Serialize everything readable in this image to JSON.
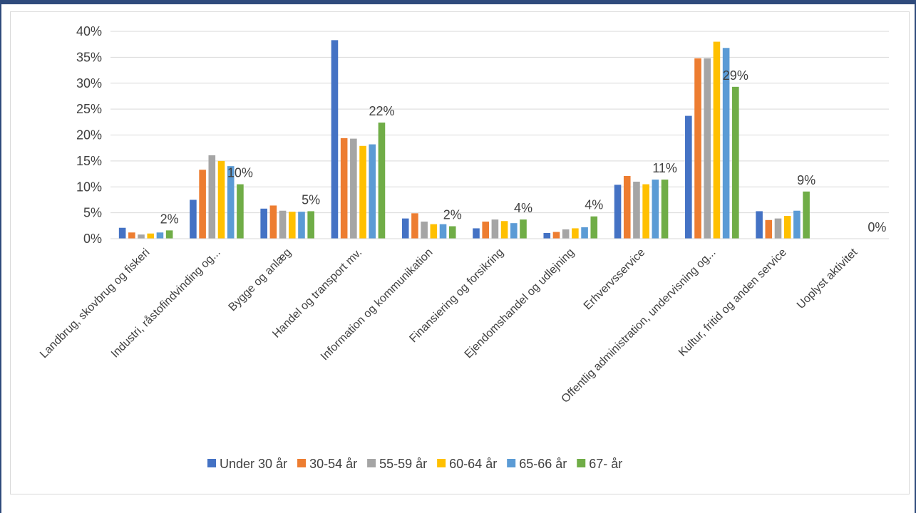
{
  "chart_data": {
    "type": "bar",
    "categories": [
      "Landbrug, skovbrug og fiskeri",
      "Industri, råstofindvinding og...",
      "Bygge og anlæg",
      "Handel og transport mv.",
      "Information og kommunikation",
      "Finansiering og forsikring",
      "Ejendomshandel og udlejning",
      "Erhvervsservice",
      "Offentlig administration, undervisning og...",
      "Kultur, fritid og anden service",
      "Uoplyst aktivitet"
    ],
    "series": [
      {
        "name": "Under 30 år",
        "color": "#4472c4",
        "values": [
          2.1,
          7.5,
          5.8,
          38.3,
          3.9,
          2.0,
          1.1,
          10.4,
          23.7,
          5.3,
          0
        ]
      },
      {
        "name": "30-54 år",
        "color": "#ed7d31",
        "values": [
          1.2,
          13.3,
          6.4,
          19.4,
          4.9,
          3.3,
          1.3,
          12.1,
          34.8,
          3.6,
          0
        ]
      },
      {
        "name": "55-59 år",
        "color": "#a5a5a5",
        "values": [
          0.8,
          16.1,
          5.4,
          19.3,
          3.3,
          3.7,
          1.8,
          11.0,
          34.8,
          3.9,
          0
        ]
      },
      {
        "name": "60-64 år",
        "color": "#ffc000",
        "values": [
          1.0,
          15.0,
          5.2,
          17.9,
          2.8,
          3.4,
          2.0,
          10.5,
          38.0,
          4.4,
          0
        ]
      },
      {
        "name": "65-66 år",
        "color": "#5b9bd5",
        "values": [
          1.2,
          14.0,
          5.2,
          18.2,
          2.8,
          3.0,
          2.2,
          11.4,
          36.8,
          5.4,
          0
        ]
      },
      {
        "name": "67- år",
        "color": "#70ad47",
        "values": [
          1.6,
          10.5,
          5.3,
          22.4,
          2.4,
          3.7,
          4.3,
          11.4,
          29.3,
          9.1,
          0
        ]
      }
    ],
    "data_labels": [
      "2%",
      "10%",
      "5%",
      "22%",
      "2%",
      "4%",
      "4%",
      "11%",
      "29%",
      "9%",
      "0%"
    ],
    "y_ticks": [
      "0%",
      "5%",
      "10%",
      "15%",
      "20%",
      "25%",
      "30%",
      "35%",
      "40%"
    ],
    "ylim": [
      0,
      40
    ],
    "grid": true,
    "legend_position": "bottom"
  }
}
